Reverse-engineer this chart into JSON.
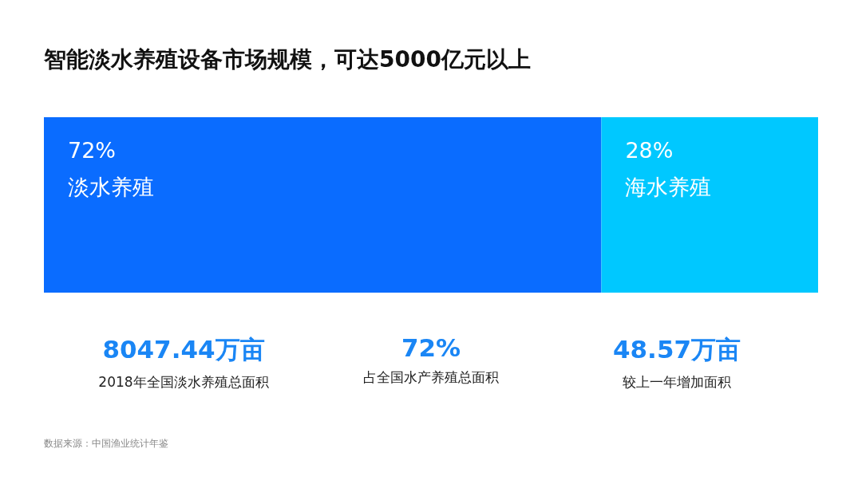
{
  "chart_data": {
    "type": "bar",
    "title": "智能淡水养殖设备市场规模，可达5000亿元以上",
    "orientation": "horizontal",
    "stacked": true,
    "categories": [
      null
    ],
    "tick_labels": false,
    "legend": false,
    "series": [
      {
        "name": "淡水养殖",
        "color": "#0a6cff",
        "values": [
          72
        ],
        "value_labels": [
          "72%"
        ]
      },
      {
        "name": "海水养殖",
        "color": "#00c8ff",
        "values": [
          28
        ],
        "value_labels": [
          "28%"
        ]
      }
    ],
    "annotations": [
      "8047.44万亩",
      "2018年全国淡水养殖总面积",
      "72%",
      "占全国水产养殖总面积",
      "48.57万亩",
      "较上一年增加面积",
      "数据来源：中国渔业统计年鉴"
    ]
  }
}
